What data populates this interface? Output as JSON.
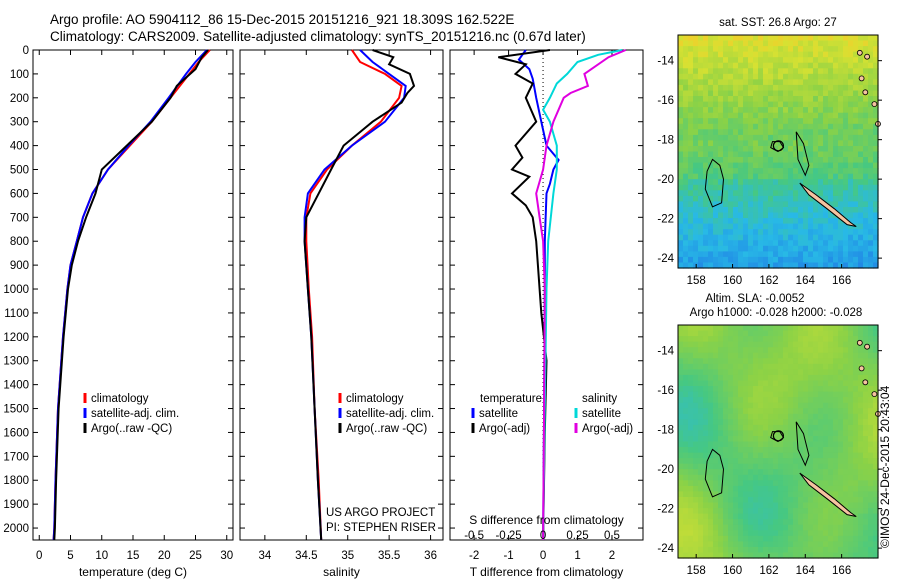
{
  "header": {
    "line1": "Argo profile: AO 5904112_86 15-Dec-2015 20151216_921 18.309S 162.522E",
    "line2": "Climatology: CARS2009. Satellite-adjusted climatology: synTS_20151216.nc (0.67d later)"
  },
  "side_credit": "©IMOS 24-Dec-2015 20:43:04",
  "colors": {
    "climatology": "#ff0000",
    "satellite": "#0000ff",
    "argo": "#000000",
    "s_satellite": "#00d8d8",
    "s_argo": "#e000e0"
  },
  "depth_ticks": [
    "0",
    "100",
    "200",
    "300",
    "400",
    "500",
    "600",
    "700",
    "800",
    "900",
    "1000",
    "1100",
    "1200",
    "1300",
    "1400",
    "1500",
    "1600",
    "1700",
    "1800",
    "1900",
    "2000"
  ],
  "chart_data": [
    {
      "type": "line",
      "name": "temperature",
      "xlabel": "temperature (deg C)",
      "xlim": [
        -1,
        31
      ],
      "ylim": [
        0,
        2050
      ],
      "x_ticks": [
        "0",
        "5",
        "10",
        "15",
        "20",
        "25",
        "30"
      ],
      "x_tick_values": [
        0,
        5,
        10,
        15,
        20,
        25,
        30
      ],
      "legend": [
        "climatology",
        "satellite-adj. clim.",
        "Argo(..raw -QC)"
      ],
      "legend_colors": [
        "#ff0000",
        "#0000ff",
        "#000000"
      ],
      "series": [
        {
          "name": "climatology",
          "color": "#ff0000",
          "depth": [
            0,
            50,
            100,
            200,
            300,
            400,
            500,
            600,
            700,
            800,
            900,
            1000,
            1200,
            1500,
            1800,
            2000,
            2050
          ],
          "values": [
            27.3,
            25.5,
            24.0,
            21.0,
            18.0,
            14.5,
            11.0,
            8.5,
            7.0,
            6.0,
            5.0,
            4.5,
            3.8,
            3.0,
            2.6,
            2.4,
            2.3
          ]
        },
        {
          "name": "satellite-adj. clim.",
          "color": "#0000ff",
          "depth": [
            0,
            50,
            100,
            200,
            300,
            400,
            500,
            600,
            700,
            800,
            900,
            1000,
            1200,
            1500,
            1800,
            2000,
            2050
          ],
          "values": [
            26.8,
            25.0,
            23.5,
            20.7,
            17.8,
            14.3,
            11.0,
            8.5,
            7.0,
            6.0,
            5.0,
            4.5,
            3.8,
            3.0,
            2.6,
            2.4,
            2.3
          ]
        },
        {
          "name": "Argo(..raw -QC)",
          "color": "#000000",
          "depth": [
            0,
            30,
            80,
            150,
            200,
            300,
            400,
            500,
            600,
            700,
            800,
            900,
            1000,
            1200,
            1500,
            1800,
            2000,
            2050
          ],
          "values": [
            27.0,
            26.0,
            25.0,
            22.0,
            21.0,
            18.0,
            14.0,
            10.0,
            9.0,
            7.5,
            6.2,
            5.2,
            4.6,
            3.9,
            3.1,
            2.7,
            2.5,
            2.4
          ]
        }
      ]
    },
    {
      "type": "line",
      "name": "salinity",
      "xlabel": "salinity",
      "xlim": [
        33.7,
        36.15
      ],
      "ylim": [
        0,
        2050
      ],
      "x_ticks": [
        "34",
        "34.5",
        "35",
        "35.5",
        "36"
      ],
      "x_tick_values": [
        34,
        34.5,
        35,
        35.5,
        36
      ],
      "legend": [
        "climatology",
        "satellite-adj. clim.",
        "Argo(..raw -QC)"
      ],
      "legend_colors": [
        "#ff0000",
        "#0000ff",
        "#000000"
      ],
      "footer": [
        "US ARGO PROJECT",
        "PI: STEPHEN RISER"
      ],
      "series": [
        {
          "name": "climatology",
          "color": "#ff0000",
          "depth": [
            0,
            50,
            100,
            150,
            200,
            300,
            400,
            500,
            600,
            700,
            800,
            1000,
            1200,
            1500,
            1800,
            2050
          ],
          "values": [
            35.05,
            35.15,
            35.45,
            35.65,
            35.62,
            35.4,
            35.05,
            34.75,
            34.55,
            34.5,
            34.5,
            34.53,
            34.57,
            34.6,
            34.65,
            34.68
          ]
        },
        {
          "name": "satellite-adj. clim.",
          "color": "#0000ff",
          "depth": [
            0,
            50,
            100,
            150,
            200,
            300,
            400,
            500,
            600,
            700,
            800,
            1000,
            1200,
            1500,
            1800,
            2050
          ],
          "values": [
            35.15,
            35.3,
            35.5,
            35.7,
            35.68,
            35.45,
            35.05,
            34.72,
            34.52,
            34.48,
            34.48,
            34.52,
            34.56,
            34.6,
            34.64,
            34.68
          ]
        },
        {
          "name": "Argo(..raw -QC)",
          "color": "#000000",
          "depth": [
            0,
            30,
            60,
            100,
            150,
            180,
            220,
            300,
            400,
            500,
            600,
            700,
            800,
            1000,
            1200,
            1500,
            1800,
            2050
          ],
          "values": [
            35.3,
            35.55,
            35.5,
            35.75,
            35.8,
            35.72,
            35.65,
            35.3,
            34.95,
            34.8,
            34.65,
            34.5,
            34.48,
            34.52,
            34.56,
            34.6,
            34.64,
            34.68
          ]
        }
      ]
    },
    {
      "type": "line",
      "name": "difference from climatology",
      "xlabel": "T difference from climatology",
      "xlabel_top": "S difference from climatology",
      "xlim": [
        -2.7,
        2.9
      ],
      "ylim": [
        0,
        2050
      ],
      "x_ticks": [
        "-2",
        "-1",
        "0",
        "1",
        "2"
      ],
      "x_tick_values": [
        -2,
        -1,
        0,
        1,
        2
      ],
      "s_ticks": [
        "-0.5",
        "-0.25",
        "0",
        "0.25",
        "0.5"
      ],
      "s_tick_values": [
        -2,
        -1,
        0,
        1,
        2
      ],
      "legend_t_title": "temperature",
      "legend_s_title": "salinity",
      "legend_t": [
        "satellite",
        "Argo(-adj)"
      ],
      "legend_s": [
        "satellite",
        "Argo(-adj)"
      ],
      "series": [
        {
          "name": "T satellite",
          "color": "#0000ff",
          "depth": [
            0,
            40,
            80,
            120,
            200,
            300,
            400,
            460,
            500,
            560,
            600,
            800,
            1000,
            1500,
            2050
          ],
          "values": [
            -0.5,
            -0.7,
            -0.4,
            -0.3,
            -0.2,
            -0.05,
            0.1,
            0.45,
            0.3,
            0.2,
            0.1,
            0.05,
            0.05,
            0.03,
            0.0
          ]
        },
        {
          "name": "T Argo(-adj)",
          "color": "#000000",
          "depth": [
            0,
            30,
            60,
            100,
            140,
            200,
            300,
            400,
            450,
            500,
            530,
            600,
            650,
            700,
            800,
            900,
            1000,
            1100,
            1300,
            1600,
            2050
          ],
          "values": [
            0.2,
            -1.3,
            -0.5,
            -0.8,
            -0.3,
            -0.5,
            -0.2,
            -0.8,
            -0.6,
            -0.9,
            -0.4,
            -0.9,
            -0.5,
            -0.3,
            -0.2,
            -0.15,
            -0.1,
            -0.05,
            0.1,
            0.05,
            0.0
          ]
        },
        {
          "name": "S satellite",
          "color": "#00d8d8",
          "depth": [
            0,
            20,
            50,
            100,
            140,
            200,
            250,
            300,
            400,
            500,
            600,
            800,
            1000,
            1500,
            2050
          ],
          "values": [
            2.3,
            1.6,
            1.0,
            0.7,
            0.4,
            0.2,
            0.0,
            0.2,
            0.4,
            0.4,
            0.3,
            0.15,
            0.1,
            0.05,
            0.0
          ]
        },
        {
          "name": "S Argo(-adj)",
          "color": "#e000e0",
          "depth": [
            0,
            30,
            100,
            150,
            180,
            200,
            300,
            400,
            500,
            600,
            700,
            800,
            1000,
            1500,
            2050
          ],
          "values": [
            2.4,
            1.9,
            1.2,
            1.3,
            0.8,
            0.6,
            0.3,
            0.1,
            0.0,
            -0.2,
            -0.1,
            0.0,
            0.05,
            0.03,
            0.0
          ]
        }
      ]
    },
    {
      "type": "heatmap",
      "name": "sat. SST map",
      "title": "sat. SST: 26.8 Argo: 27",
      "xlim": [
        157,
        168
      ],
      "ylim": [
        -24.5,
        -12.7
      ],
      "x_ticks": [
        "158",
        "160",
        "162",
        "164",
        "166"
      ],
      "x_tick_values": [
        158,
        160,
        162,
        164,
        166
      ],
      "y_ticks": [
        "-14",
        "-16",
        "-18",
        "-20",
        "-22",
        "-24"
      ],
      "y_tick_values": [
        -14,
        -16,
        -18,
        -20,
        -22,
        -24
      ],
      "float_position": [
        162.522,
        -18.309
      ]
    },
    {
      "type": "heatmap",
      "name": "Altim. SLA map",
      "title": "Altim. SLA: -0.0052",
      "subtitle": "Argo h1000: -0.028 h2000: -0.028",
      "xlim": [
        157,
        168
      ],
      "ylim": [
        -24.5,
        -12.7
      ],
      "x_ticks": [
        "158",
        "160",
        "162",
        "164",
        "166"
      ],
      "x_tick_values": [
        158,
        160,
        162,
        164,
        166
      ],
      "y_ticks": [
        "-14",
        "-16",
        "-18",
        "-20",
        "-22",
        "-24"
      ],
      "y_tick_values": [
        -14,
        -16,
        -18,
        -20,
        -22,
        -24
      ],
      "float_position": [
        162.522,
        -18.309
      ]
    }
  ]
}
